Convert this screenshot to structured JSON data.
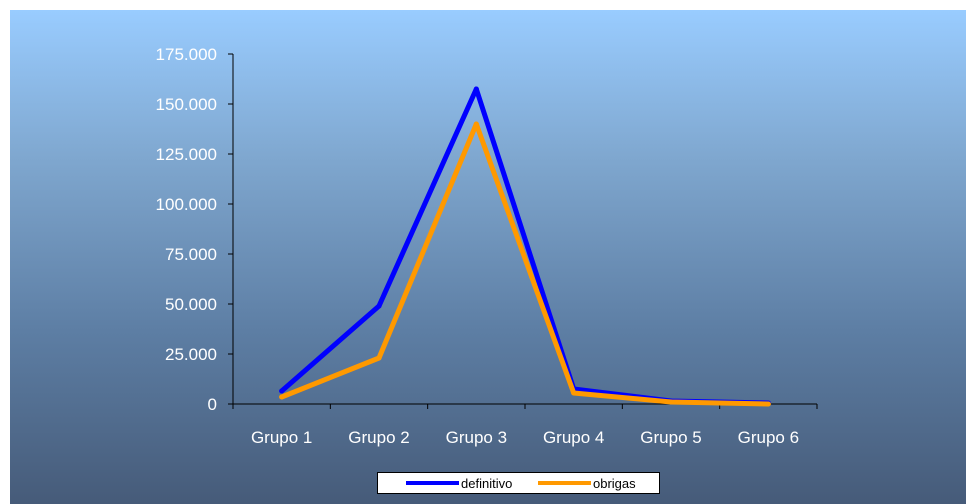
{
  "chart_data": {
    "type": "line",
    "categories": [
      "Grupo 1",
      "Grupo 2",
      "Grupo 3",
      "Grupo 4",
      "Grupo 5",
      "Grupo 6"
    ],
    "y_ticks": [
      "0",
      "25.000",
      "50.000",
      "75.000",
      "100.000",
      "125.000",
      "150.000",
      "175.000"
    ],
    "ylim": [
      0,
      175000
    ],
    "grid": false,
    "legend_position": "bottom",
    "series": [
      {
        "name": "definitivo",
        "color": "#0000ff",
        "values": [
          6500,
          49000,
          157500,
          7500,
          1500,
          500
        ]
      },
      {
        "name": "obrigas",
        "color": "#ff9900",
        "values": [
          3500,
          23000,
          140000,
          5500,
          1000,
          0
        ]
      }
    ]
  }
}
